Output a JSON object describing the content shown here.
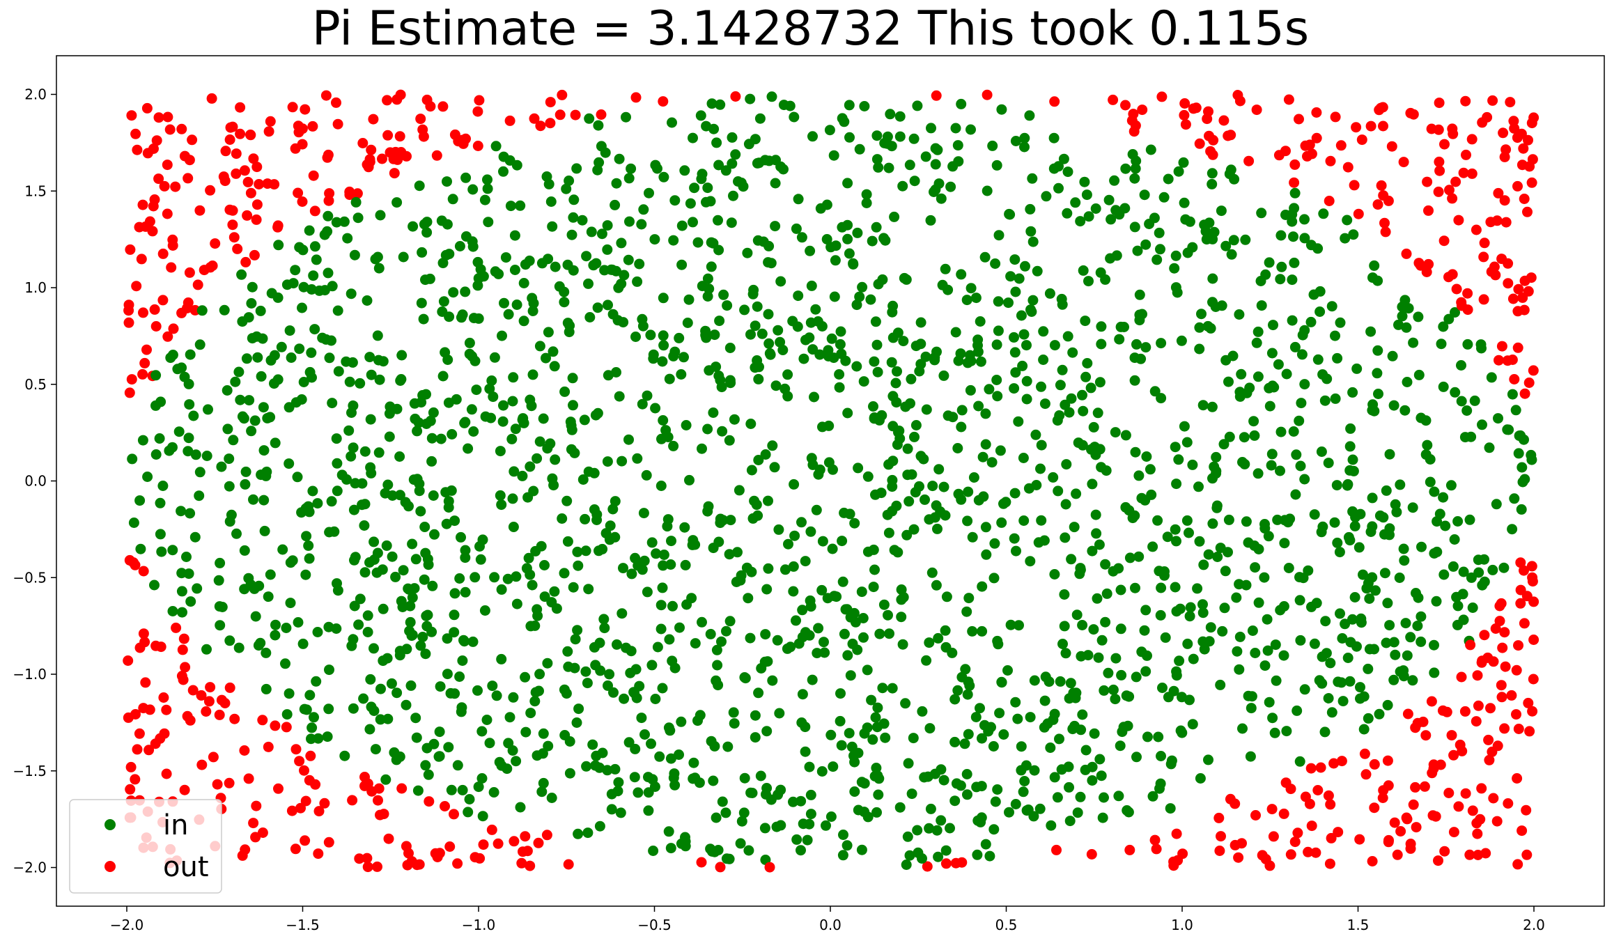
{
  "chart_data": {
    "type": "scatter",
    "title": "Pi Estimate = 3.1428732 This took 0.115s",
    "xlabel": "",
    "ylabel": "",
    "xlim": [
      -2.2,
      2.2
    ],
    "ylim": [
      -2.2,
      2.2
    ],
    "x_ticks": [
      -2.0,
      -1.5,
      -1.0,
      -0.5,
      0.0,
      0.5,
      1.0,
      1.5,
      2.0
    ],
    "x_tick_labels": [
      "−2.0",
      "−1.5",
      "−1.0",
      "−0.5",
      "0.0",
      "0.5",
      "1.0",
      "1.5",
      "2.0"
    ],
    "y_ticks": [
      -2.0,
      -1.5,
      -1.0,
      -0.5,
      0.0,
      0.5,
      1.0,
      1.5,
      2.0
    ],
    "y_tick_labels": [
      "−2.0",
      "−1.5",
      "−1.0",
      "−0.5",
      "0.0",
      "0.5",
      "1.0",
      "1.5",
      "2.0"
    ],
    "grid": false,
    "legend_position": "lower-left",
    "point_region": {
      "xmin": -2.0,
      "xmax": 2.0,
      "ymin": -2.0,
      "ymax": 2.0
    },
    "circle_radius": 2.0,
    "series": [
      {
        "name": "in",
        "color": "#008000",
        "approx_count": 2200,
        "description_rule": "x^2 + y^2 <= 4"
      },
      {
        "name": "out",
        "color": "#ff0000",
        "approx_count": 600,
        "description_rule": "x^2 + y^2 > 4"
      }
    ],
    "legend": [
      {
        "label": "in",
        "color": "#008000"
      },
      {
        "label": "out",
        "color": "#ff0000"
      }
    ]
  }
}
